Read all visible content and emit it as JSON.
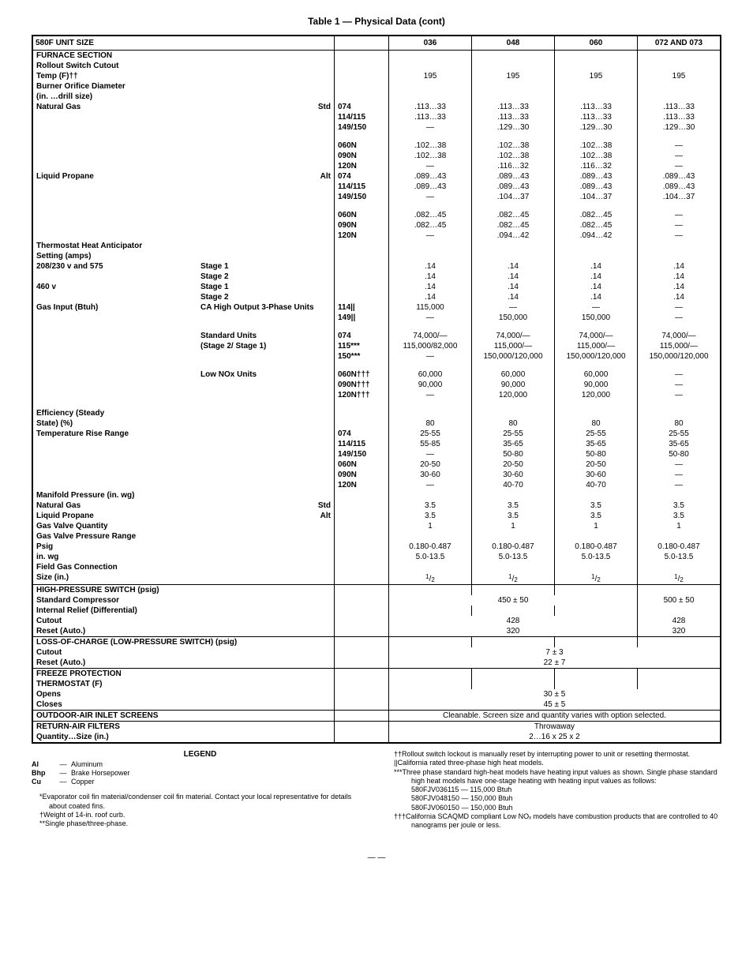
{
  "title": "Table 1 — Physical Data (cont)",
  "header": {
    "c0": "580F UNIT SIZE",
    "c1": "036",
    "c2": "048",
    "c3": "060",
    "c4": "072 AND 073"
  },
  "rows": [
    {
      "type": "section",
      "a": "FURNACE SECTION"
    },
    {
      "type": "lbl1",
      "a": "Rollout Switch Cutout"
    },
    {
      "type": "data",
      "a": "Temp (F)††",
      "cls": "lbl indent1",
      "d": [
        "195",
        "195",
        "195",
        "195"
      ]
    },
    {
      "type": "lbl1",
      "a": "Burner Orifice Diameter"
    },
    {
      "type": "lbl1",
      "a": "(in. …drill size)"
    },
    {
      "type": "data3",
      "a": "Natural Gas",
      "ar": "Std",
      "cls": "lbl indent2",
      "s": "074",
      "d": [
        ".113…33",
        ".113…33",
        ".113…33",
        ".113…33"
      ]
    },
    {
      "type": "subonly",
      "s": "114/115",
      "d": [
        ".113…33",
        ".113…33",
        ".113…33",
        ".113…33"
      ]
    },
    {
      "type": "subonly",
      "s": "149/150",
      "d": [
        "—",
        ".129…30",
        ".129…30",
        ".129…30"
      ]
    },
    {
      "type": "spacer"
    },
    {
      "type": "subonly",
      "s": "060N",
      "d": [
        ".102…38",
        ".102…38",
        ".102…38",
        "—"
      ]
    },
    {
      "type": "subonly",
      "s": "090N",
      "d": [
        ".102…38",
        ".102…38",
        ".102…38",
        "—"
      ]
    },
    {
      "type": "subonly",
      "s": "120N",
      "d": [
        "—",
        ".116…32",
        ".116…32",
        "—"
      ]
    },
    {
      "type": "data3",
      "a": "Liquid Propane",
      "ar": "Alt",
      "cls": "lbl indent2",
      "s": "074",
      "d": [
        ".089…43",
        ".089…43",
        ".089…43",
        ".089…43"
      ]
    },
    {
      "type": "subonly",
      "s": "114/115",
      "d": [
        ".089…43",
        ".089…43",
        ".089…43",
        ".089…43"
      ]
    },
    {
      "type": "subonly",
      "s": "149/150",
      "d": [
        "—",
        ".104…37",
        ".104…37",
        ".104…37"
      ]
    },
    {
      "type": "spacer"
    },
    {
      "type": "subonly",
      "s": "060N",
      "d": [
        ".082…45",
        ".082…45",
        ".082…45",
        "—"
      ]
    },
    {
      "type": "subonly",
      "s": "090N",
      "d": [
        ".082…45",
        ".082…45",
        ".082…45",
        "—"
      ]
    },
    {
      "type": "subonly",
      "s": "120N",
      "d": [
        "—",
        ".094…42",
        ".094…42",
        "—"
      ]
    },
    {
      "type": "lbl1",
      "a": "Thermostat Heat Anticipator"
    },
    {
      "type": "lbl1",
      "a": "Setting (amps)"
    },
    {
      "type": "data2",
      "a": "208/230 v and 575",
      "b": "Stage 1",
      "cls": "lbl indent2",
      "d": [
        ".14",
        ".14",
        ".14",
        ".14"
      ]
    },
    {
      "type": "data2",
      "a": "",
      "b": "Stage 2",
      "cls": "indent2",
      "d": [
        ".14",
        ".14",
        ".14",
        ".14"
      ]
    },
    {
      "type": "data2",
      "a": "460 v",
      "b": "Stage 1",
      "cls": "lbl indent2",
      "d": [
        ".14",
        ".14",
        ".14",
        ".14"
      ]
    },
    {
      "type": "data2",
      "a": "",
      "b": "Stage 2",
      "cls": "indent2",
      "d": [
        ".14",
        ".14",
        ".14",
        ".14"
      ]
    },
    {
      "type": "data2b",
      "a": "Gas Input (Btuh)",
      "b": "CA High Output 3-Phase Units",
      "cls": "lbl indent1",
      "s": "114||",
      "d": [
        "115,000",
        "—",
        "—",
        "—"
      ]
    },
    {
      "type": "subonly",
      "s": "149||",
      "d": [
        "—",
        "150,000",
        "150,000",
        "—"
      ]
    },
    {
      "type": "spacer"
    },
    {
      "type": "data2c",
      "b": "Standard Units",
      "s": "074",
      "d": [
        "74,000/—",
        "74,000/—",
        "74,000/—",
        "74,000/—"
      ]
    },
    {
      "type": "data2c",
      "b": "(Stage 2/ Stage 1)",
      "s": "115***",
      "d": [
        "115,000/82,000",
        "115,000/—",
        "115,000/—",
        "115,000/—"
      ]
    },
    {
      "type": "subonly",
      "s": "150***",
      "d": [
        "—",
        "150,000/120,000",
        "150,000/120,000",
        "150,000/120,000"
      ]
    },
    {
      "type": "spacer"
    },
    {
      "type": "data2c",
      "b": "Low NOx Units",
      "s": "060N†††",
      "d": [
        "60,000",
        "60,000",
        "60,000",
        "—"
      ]
    },
    {
      "type": "subonly",
      "s": "090N†††",
      "d": [
        "90,000",
        "90,000",
        "90,000",
        "—"
      ]
    },
    {
      "type": "subonly",
      "s": "120N†††",
      "d": [
        "—",
        "120,000",
        "120,000",
        "—"
      ]
    },
    {
      "type": "spacer"
    },
    {
      "type": "lbl1",
      "a": "Efficiency (Steady"
    },
    {
      "type": "data",
      "a": "State) (%)",
      "cls": "lbl indent1",
      "d": [
        "80",
        "80",
        "80",
        "80"
      ]
    },
    {
      "type": "data3b",
      "a": "Temperature Rise Range",
      "cls": "lbl indent1",
      "s": "074",
      "d": [
        "25-55",
        "25-55",
        "25-55",
        "25-55"
      ]
    },
    {
      "type": "subonly",
      "s": "114/115",
      "d": [
        "55-85",
        "35-65",
        "35-65",
        "35-65"
      ]
    },
    {
      "type": "subonly",
      "s": "149/150",
      "d": [
        "—",
        "50-80",
        "50-80",
        "50-80"
      ]
    },
    {
      "type": "subonly",
      "s": "060N",
      "d": [
        "20-50",
        "20-50",
        "20-50",
        "—"
      ]
    },
    {
      "type": "subonly",
      "s": "090N",
      "d": [
        "30-60",
        "30-60",
        "30-60",
        "—"
      ]
    },
    {
      "type": "subonly",
      "s": "120N",
      "d": [
        "—",
        "40-70",
        "40-70",
        "—"
      ]
    },
    {
      "type": "lbl1",
      "a": "Manifold Pressure (in. wg)"
    },
    {
      "type": "data3",
      "a": "Natural Gas",
      "ar": "Std",
      "cls": "lbl indent2",
      "s": "",
      "d": [
        "3.5",
        "3.5",
        "3.5",
        "3.5"
      ]
    },
    {
      "type": "data3",
      "a": "Liquid Propane",
      "ar": "Alt",
      "cls": "lbl indent2",
      "s": "",
      "d": [
        "3.5",
        "3.5",
        "3.5",
        "3.5"
      ]
    },
    {
      "type": "data",
      "a": "Gas Valve Quantity",
      "cls": "lbl indent1",
      "d": [
        "1",
        "1",
        "1",
        "1"
      ]
    },
    {
      "type": "lbl1",
      "a": "Gas Valve Pressure Range"
    },
    {
      "type": "data",
      "a": "Psig",
      "cls": "lbl indent2",
      "d": [
        "0.180-0.487",
        "0.180-0.487",
        "0.180-0.487",
        "0.180-0.487"
      ]
    },
    {
      "type": "data",
      "a": "in. wg",
      "cls": "lbl indent2",
      "d": [
        "5.0-13.5",
        "5.0-13.5",
        "5.0-13.5",
        "5.0-13.5"
      ]
    },
    {
      "type": "lbl1",
      "a": "Field Gas Connection"
    },
    {
      "type": "datafrac",
      "a": "Size (in.)",
      "cls": "lbl indent1",
      "d": [
        "1/2",
        "1/2",
        "1/2",
        "1/2"
      ]
    },
    {
      "type": "sectionline",
      "a": "HIGH-PRESSURE SWITCH (psig)"
    },
    {
      "type": "span31",
      "a": "Standard Compressor",
      "cls": "lbl indent1",
      "d3": "450 ± 50",
      "d1": "500 ± 50"
    },
    {
      "type": "lbl1",
      "a": "Internal Relief (Differential)"
    },
    {
      "type": "span31",
      "a": "Cutout",
      "cls": "lbl indent1",
      "d3": "428",
      "d1": "428"
    },
    {
      "type": "span31",
      "a": "Reset (Auto.)",
      "cls": "lbl indent1",
      "d3": "320",
      "d1": "320"
    },
    {
      "type": "sectionline",
      "a": "LOSS-OF-CHARGE (LOW-PRESSURE SWITCH) (psig)"
    },
    {
      "type": "span4",
      "a": "Cutout",
      "cls": "lbl indent1",
      "d": "7 ± 3"
    },
    {
      "type": "span4",
      "a": "Reset (Auto.)",
      "cls": "lbl indent1",
      "d": "22 ± 7"
    },
    {
      "type": "sectionline",
      "a": "FREEZE PROTECTION"
    },
    {
      "type": "lbl1",
      "a": "THERMOSTAT (F)"
    },
    {
      "type": "span4",
      "a": "Opens",
      "cls": "lbl indent2",
      "d": "30 ± 5"
    },
    {
      "type": "span4",
      "a": "Closes",
      "cls": "lbl indent2",
      "d": "45 ± 5"
    },
    {
      "type": "sectionspan",
      "a": "OUTDOOR-AIR INLET SCREENS",
      "d": "Cleanable. Screen size and quantity varies with option selected."
    },
    {
      "type": "sectionline",
      "a": "RETURN-AIR FILTERS",
      "d": "Throwaway",
      "span": true
    },
    {
      "type": "span4",
      "a": "Quantity…Size (in.)",
      "cls": "lbl indent1",
      "d": "2…16 x 25 x 2"
    }
  ],
  "legend": {
    "title": "LEGEND",
    "items": [
      {
        "k": "Al",
        "d": "—",
        "v": "Aluminum"
      },
      {
        "k": "Bhp",
        "d": "—",
        "v": "Brake Horsepower"
      },
      {
        "k": "Cu",
        "d": "—",
        "v": "Copper"
      }
    ],
    "notes_left": [
      "*Evaporator coil fin material/condenser coil fin material. Contact your local representative for details about coated fins.",
      "†Weight of 14-in. roof curb.",
      "**Single phase/three-phase."
    ],
    "notes_right": [
      "††Rollout switch lockout is manually reset by interrupting power to unit or resetting thermostat.",
      "||California rated three-phase high heat models.",
      "***Three phase standard high-heat models have heating input values as shown. Single phase standard high heat models have one-stage heating with heating input values as follows:",
      "   580FJV036115 — 115,000 Btuh",
      "   580FJV048150 — 150,000 Btuh",
      "   580FJV060150 — 150,000 Btuh",
      "†††California SCAQMD compliant Low NOₓ models have combustion products that are controlled to 40 nanograms per joule or less."
    ]
  },
  "page": "— —"
}
